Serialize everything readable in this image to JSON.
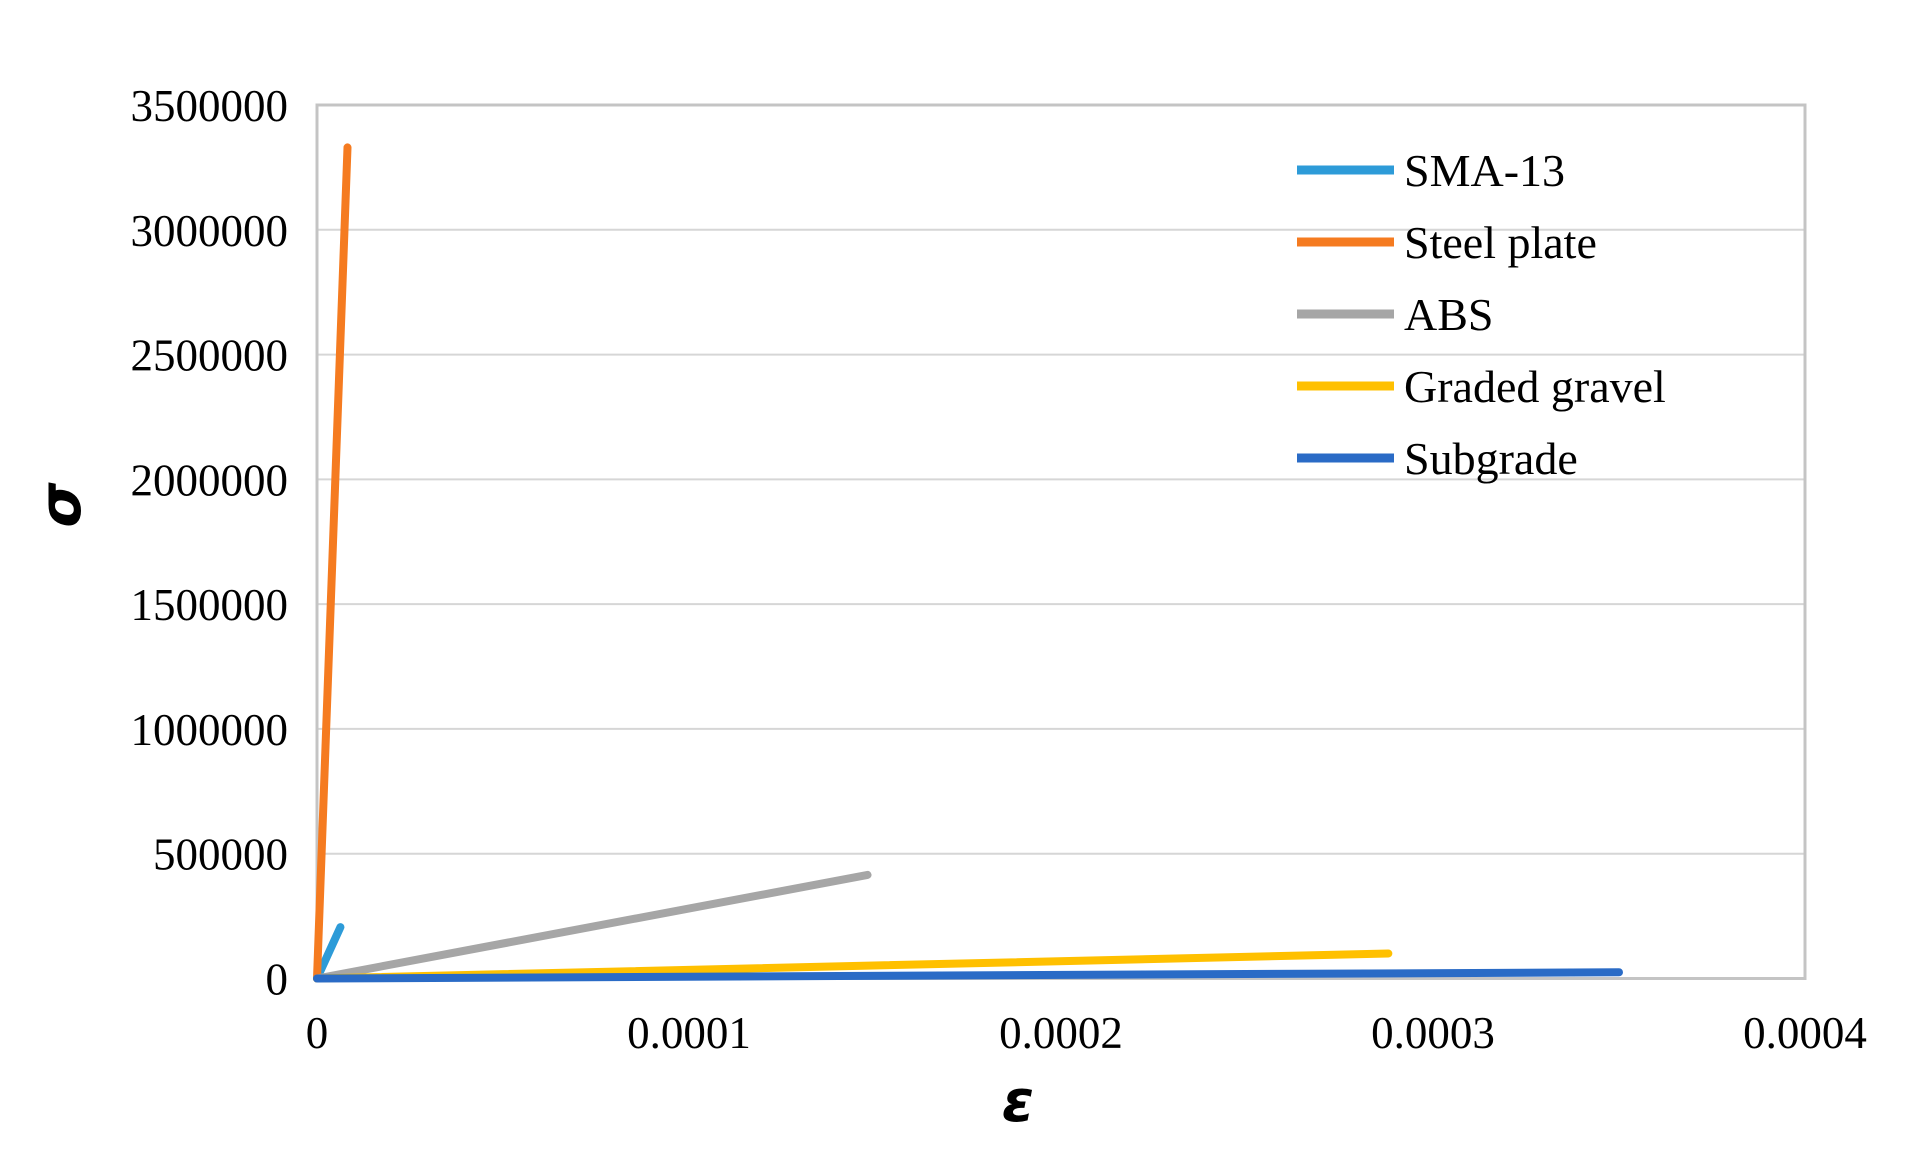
{
  "figure": {
    "background": "#FFFFFF"
  },
  "chart_data": {
    "type": "line",
    "title": "",
    "xlabel": "ε",
    "ylabel": "σ",
    "xlim": [
      0,
      0.0004
    ],
    "ylim": [
      0,
      3500000
    ],
    "x_ticks": [
      0,
      0.0001,
      0.0002,
      0.0003,
      0.0004
    ],
    "x_tick_labels": [
      "0",
      "0.0001",
      "0.0002",
      "0.0003",
      "0.0004"
    ],
    "y_ticks": [
      0,
      500000,
      1000000,
      1500000,
      2000000,
      2500000,
      3000000,
      3500000
    ],
    "y_tick_labels": [
      "0",
      "500000",
      "1000000",
      "1500000",
      "2000000",
      "2500000",
      "3000000",
      "3500000"
    ],
    "grid": "horizontal-only",
    "gridline_color": "#D6D6D6",
    "plot_border_color": "#C4C4C4",
    "text_color": "#000000",
    "legend_position": "inside-top-right",
    "series": [
      {
        "name": "SMA-13",
        "color": "#2D9BD8",
        "points": [
          [
            0,
            0
          ],
          [
            6.3e-06,
            206000
          ]
        ]
      },
      {
        "name": "Steel plate",
        "color": "#F57B20",
        "points": [
          [
            0,
            0
          ],
          [
            8.2e-06,
            3330000
          ]
        ]
      },
      {
        "name": "ABS",
        "color": "#A6A6A6",
        "points": [
          [
            0,
            0
          ],
          [
            0.000148,
            415000
          ]
        ]
      },
      {
        "name": "Graded gravel",
        "color": "#FFC000",
        "points": [
          [
            0,
            0
          ],
          [
            0.000288,
            100000
          ]
        ]
      },
      {
        "name": "Subgrade",
        "color": "#2A6BC6",
        "points": [
          [
            0,
            0
          ],
          [
            0.00035,
            25000
          ]
        ]
      }
    ]
  }
}
